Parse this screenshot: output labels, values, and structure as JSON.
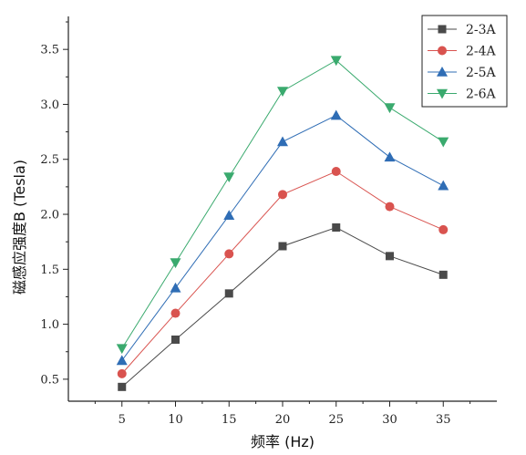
{
  "chart_data": {
    "type": "line",
    "title": "",
    "xlabel": "频率 (Hz)",
    "ylabel": "磁感应强度B (Tesla)",
    "x": [
      5,
      10,
      15,
      20,
      25,
      30,
      35
    ],
    "x_ticks": [
      "5",
      "10",
      "15",
      "20",
      "25",
      "30",
      "35"
    ],
    "y_ticks": [
      "0.5",
      "1.0",
      "1.5",
      "2.0",
      "2.5",
      "3.0",
      "3.5"
    ],
    "y_tick_values": [
      0.5,
      1.0,
      1.5,
      2.0,
      2.5,
      3.0,
      3.5
    ],
    "xlim": [
      0,
      40
    ],
    "ylim": [
      0.3,
      3.8
    ],
    "grid": false,
    "legend": "top-right",
    "series": [
      {
        "name": "2-3A",
        "marker": "square",
        "color": "#4a4a4a",
        "values": [
          0.43,
          0.86,
          1.28,
          1.71,
          1.88,
          1.62,
          1.45
        ]
      },
      {
        "name": "2-4A",
        "marker": "circle",
        "color": "#d9534f",
        "values": [
          0.55,
          1.1,
          1.64,
          2.18,
          2.39,
          2.07,
          1.86
        ]
      },
      {
        "name": "2-5A",
        "marker": "triangle-up",
        "color": "#2f6db5",
        "values": [
          0.67,
          1.33,
          1.99,
          2.66,
          2.9,
          2.52,
          2.26
        ]
      },
      {
        "name": "2-6A",
        "marker": "triangle-down",
        "color": "#3aaa6e",
        "values": [
          0.78,
          1.56,
          2.34,
          3.12,
          3.4,
          2.97,
          2.66
        ]
      }
    ]
  }
}
